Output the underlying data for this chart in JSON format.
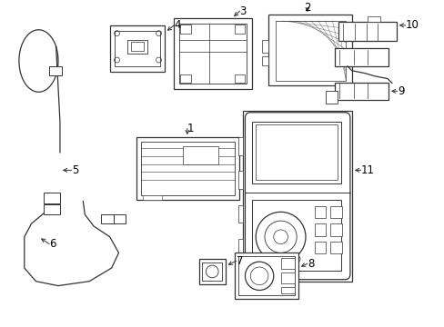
{
  "bg_color": "#ffffff",
  "line_color": "#333333",
  "label_color": "#000000",
  "figsize": [
    4.89,
    3.6
  ],
  "dpi": 100,
  "lw": 0.9,
  "label_fs": 8.5
}
